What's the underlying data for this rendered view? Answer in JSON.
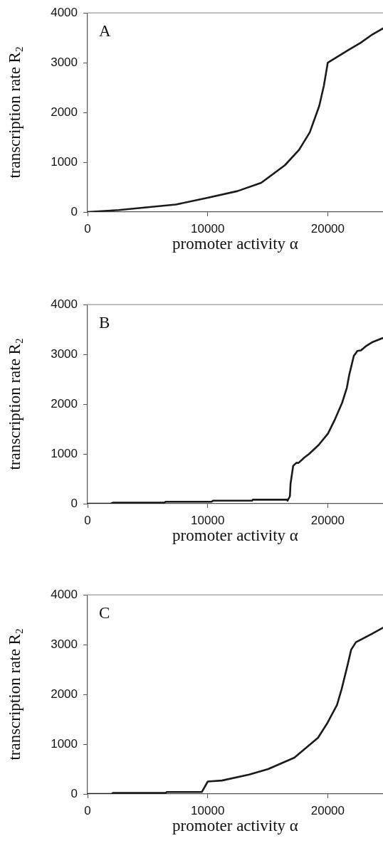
{
  "chart_data": [
    {
      "type": "line",
      "annotations": [
        "A"
      ],
      "xlabel": "promoter activity α",
      "ylabel": "transcription rate R$_{2}$",
      "grid": false,
      "legend": false,
      "marker": "none",
      "line_style": "solid",
      "xlim": [
        0,
        24600
      ],
      "xticks": [
        0,
        10000,
        20000
      ],
      "ylim": [
        0,
        4000
      ],
      "yticks": [
        0,
        1000,
        2000,
        3000,
        4000
      ],
      "x": [
        0,
        2600,
        7340,
        10000,
        12480,
        14450,
        16430,
        17610,
        18500,
        19290,
        19680,
        20000,
        21760,
        22740,
        23730,
        24600
      ],
      "series": [
        {
          "color": "#1a1a1a",
          "values": [
            0,
            40,
            150,
            285,
            420,
            585,
            940,
            1250,
            1600,
            2130,
            2540,
            3000,
            3260,
            3400,
            3570,
            3690
          ]
        }
      ]
    },
    {
      "type": "line",
      "annotations": [
        "B"
      ],
      "xlabel": "promoter activity α",
      "ylabel": "transcription rate R$_{2}$",
      "grid": false,
      "legend": false,
      "marker": "none",
      "line_style": "solid",
      "xlim": [
        0,
        24600
      ],
      "xticks": [
        0,
        10000,
        20000
      ],
      "ylim": [
        0,
        4000
      ],
      "yticks": [
        0,
        1000,
        2000,
        3000,
        4000
      ],
      "x": [
        0,
        1920,
        2100,
        6400,
        6500,
        10350,
        10430,
        13700,
        13760,
        16600,
        16650,
        16850,
        16900,
        17120,
        17380,
        17570,
        18060,
        18450,
        19240,
        20020,
        20610,
        21200,
        21590,
        21790,
        22170,
        22470,
        22760,
        23150,
        23740,
        24600
      ],
      "series": [
        {
          "color": "#1a1a1a",
          "values": [
            0,
            0,
            20,
            20,
            40,
            40,
            60,
            60,
            80,
            80,
            60,
            150,
            400,
            760,
            820,
            820,
            930,
            1000,
            1180,
            1410,
            1700,
            2030,
            2330,
            2590,
            2970,
            3070,
            3080,
            3160,
            3250,
            3330
          ]
        }
      ]
    },
    {
      "type": "line",
      "annotations": [
        "C"
      ],
      "xlabel": "promoter activity α",
      "ylabel": "transcription rate R$_{2}$",
      "grid": false,
      "legend": false,
      "marker": "none",
      "line_style": "solid",
      "xlim": [
        0,
        24600
      ],
      "xticks": [
        0,
        10000,
        20000
      ],
      "ylim": [
        0,
        4000
      ],
      "yticks": [
        0,
        1000,
        2000,
        3000,
        4000
      ],
      "x": [
        0,
        2010,
        2100,
        6500,
        6600,
        9520,
        10010,
        11190,
        13460,
        15040,
        17220,
        19190,
        19980,
        20770,
        21160,
        21660,
        21950,
        22350,
        23630,
        24600
      ],
      "series": [
        {
          "color": "#1a1a1a",
          "values": [
            0,
            0,
            20,
            20,
            40,
            40,
            250,
            270,
            390,
            500,
            730,
            1130,
            1430,
            1790,
            2110,
            2600,
            2900,
            3050,
            3210,
            3340
          ]
        }
      ]
    }
  ]
}
